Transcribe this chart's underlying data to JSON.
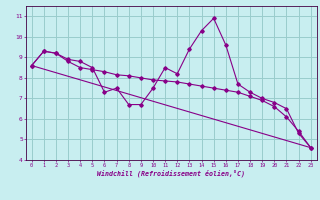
{
  "xlabel": "Windchill (Refroidissement éolien,°C)",
  "background_color": "#c8eef0",
  "line_color": "#880088",
  "grid_color": "#99cccc",
  "xlim": [
    -0.5,
    23.5
  ],
  "ylim": [
    4,
    11.5
  ],
  "yticks": [
    4,
    5,
    6,
    7,
    8,
    9,
    10,
    11
  ],
  "xticks": [
    0,
    1,
    2,
    3,
    4,
    5,
    6,
    7,
    8,
    9,
    10,
    11,
    12,
    13,
    14,
    15,
    16,
    17,
    18,
    19,
    20,
    21,
    22,
    23
  ],
  "series1_x": [
    0,
    1,
    2,
    3,
    4,
    5,
    6,
    7,
    8,
    9,
    10,
    11,
    12,
    13,
    14,
    15,
    16,
    17,
    18,
    19,
    20,
    21,
    22,
    23
  ],
  "series1_y": [
    8.6,
    9.3,
    9.2,
    8.9,
    8.8,
    8.5,
    7.3,
    7.5,
    6.7,
    6.7,
    7.5,
    8.5,
    8.2,
    9.4,
    10.3,
    10.9,
    9.6,
    7.7,
    7.3,
    7.0,
    6.8,
    6.5,
    5.3,
    4.6
  ],
  "series2_x": [
    0,
    1,
    2,
    3,
    4,
    5,
    6,
    7,
    8,
    9,
    10,
    11,
    12,
    13,
    14,
    15,
    16,
    17,
    18,
    19,
    20,
    21,
    22,
    23
  ],
  "series2_y": [
    8.6,
    9.3,
    9.2,
    8.8,
    8.5,
    8.4,
    8.3,
    8.15,
    8.1,
    8.0,
    7.9,
    7.85,
    7.8,
    7.7,
    7.6,
    7.5,
    7.4,
    7.3,
    7.1,
    6.9,
    6.6,
    6.1,
    5.4,
    4.6
  ],
  "series3_x": [
    0,
    23
  ],
  "series3_y": [
    8.6,
    4.6
  ]
}
